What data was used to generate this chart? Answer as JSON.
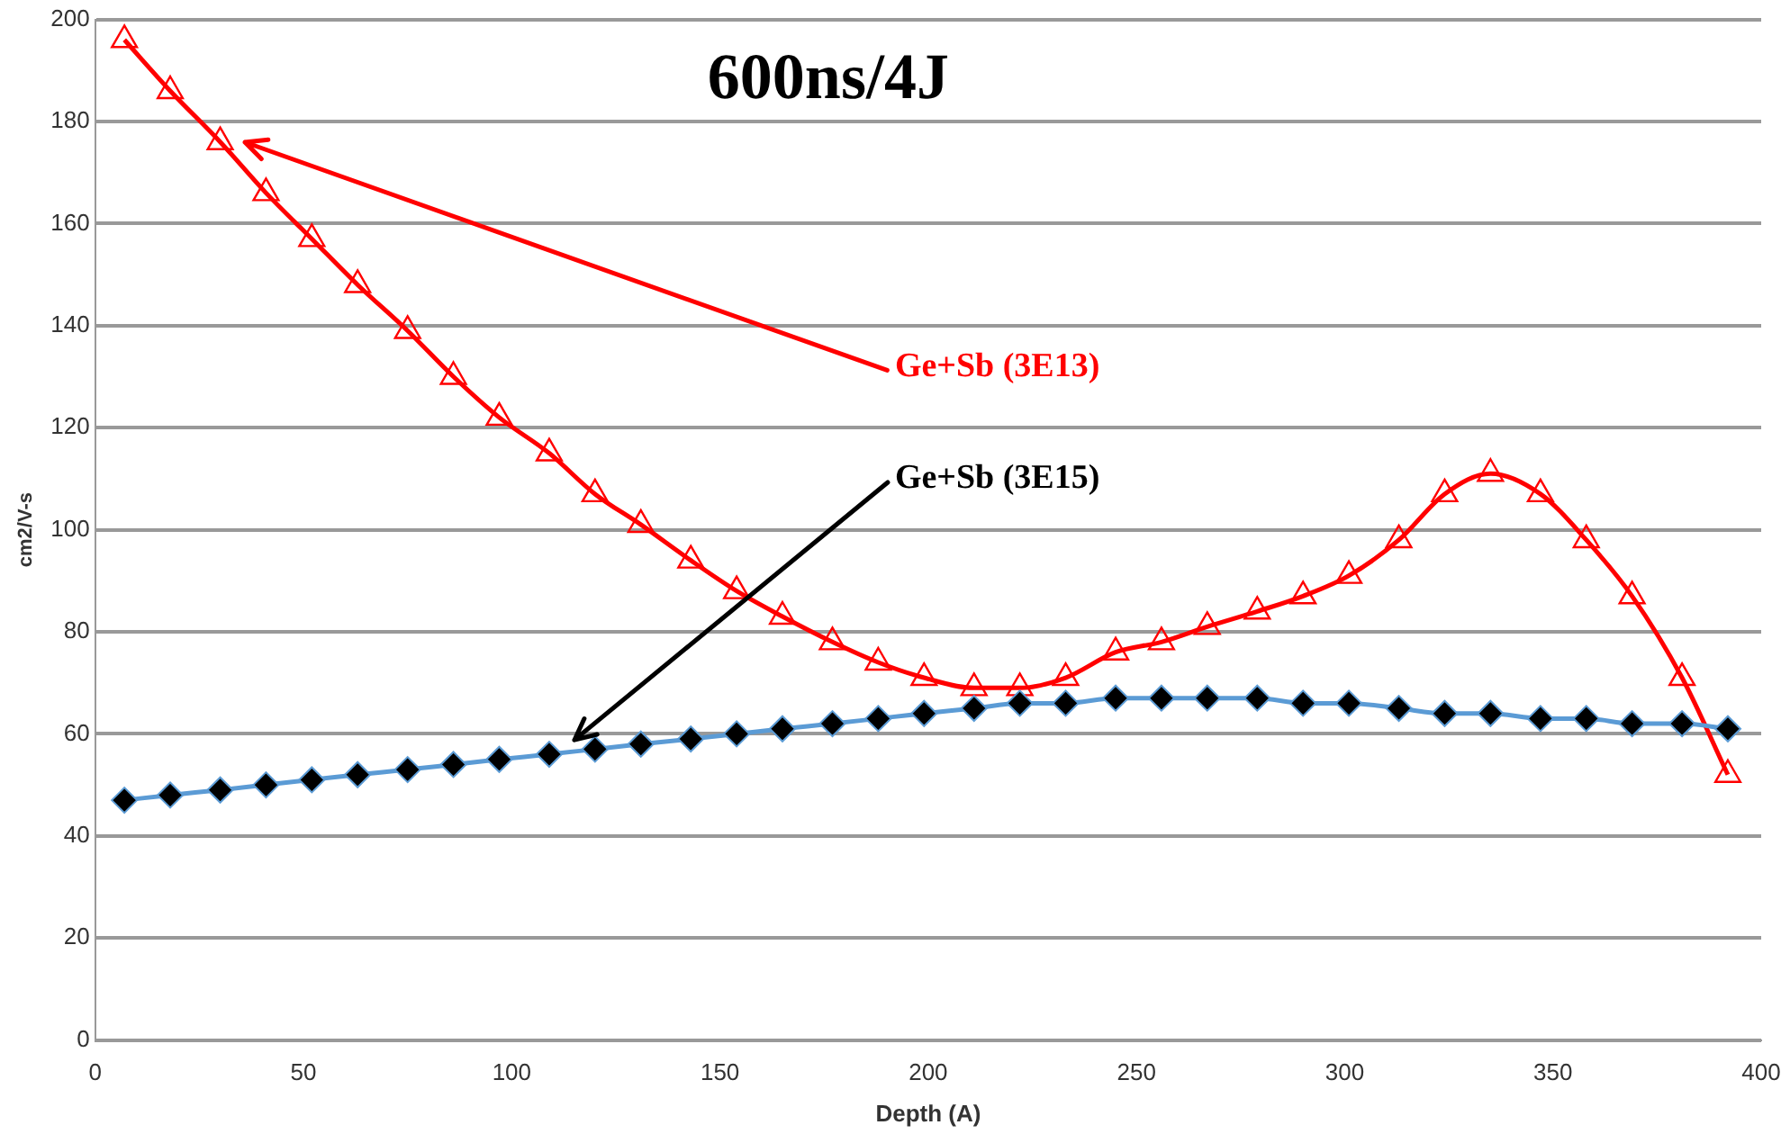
{
  "chart_data": {
    "type": "line",
    "title": "600ns/4J",
    "xlabel": "Depth (A)",
    "ylabel": "cm2/V-s",
    "x": [
      7,
      18,
      30,
      41,
      52,
      63,
      75,
      86,
      97,
      109,
      120,
      131,
      143,
      154,
      165,
      177,
      188,
      199,
      211,
      222,
      233,
      245,
      256,
      267,
      279,
      290,
      301,
      313,
      324,
      335,
      347,
      358,
      369,
      381,
      392
    ],
    "series": [
      {
        "name": "Ge+Sb (3E13)",
        "color": "#ff0000",
        "marker": "triangle",
        "values": [
          196,
          186,
          176,
          166,
          157,
          148,
          139,
          130,
          122,
          115,
          107,
          101,
          94,
          88,
          83,
          78,
          74,
          71,
          69,
          69,
          71,
          76,
          78,
          81,
          84,
          87,
          91,
          98,
          107,
          111,
          107,
          98,
          87,
          71,
          52
        ]
      },
      {
        "name": "Ge+Sb (3E15)",
        "color": "#5b9bd5",
        "marker": "diamond",
        "colors": [
          "#000000",
          "#000000",
          "#000000",
          "#000000",
          "#000000",
          "#000000",
          "#000000",
          "#000000",
          "#000000",
          "#000000",
          "#000000",
          "#000000",
          "#000000",
          "#000000",
          "#000000",
          "#000000",
          "#000000",
          "#000000",
          "#000000",
          "#000000",
          "#000000",
          "#000000",
          "#000000",
          "#000000",
          "#000000",
          "#000000",
          "#000000",
          "#000000",
          "#000000",
          "#000000",
          "#000000",
          "#000000",
          "#000000",
          "#000000",
          "#000000"
        ],
        "values": [
          47,
          48,
          49,
          50,
          51,
          52,
          53,
          54,
          55,
          56,
          57,
          58,
          59,
          60,
          61,
          62,
          63,
          64,
          65,
          66,
          66,
          67,
          67,
          67,
          67,
          66,
          66,
          65,
          64,
          64,
          63,
          63,
          62,
          62,
          61
        ]
      }
    ],
    "xlim": [
      0,
      400
    ],
    "xticks": [
      0,
      50,
      100,
      150,
      200,
      250,
      300,
      350,
      400
    ],
    "ylim": [
      0,
      200
    ],
    "yticks": [
      0,
      20,
      40,
      60,
      80,
      100,
      120,
      140,
      160,
      180,
      200
    ],
    "grid": "y",
    "legend": false
  }
}
